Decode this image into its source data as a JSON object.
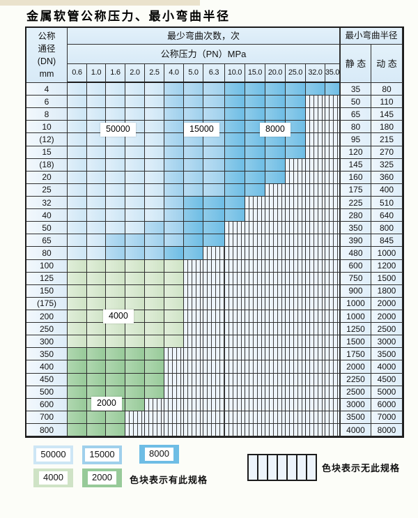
{
  "title": "金属软管公称压力、最小弯曲半径",
  "table": {
    "dn_header_lines": [
      "公称",
      "通径",
      "(DN)",
      "mm"
    ],
    "cycles_header": "最少弯曲次数，次",
    "pn_header": "公称压力（PN）MPa",
    "radius_header": "最小弯曲半径",
    "static_header": "静 态",
    "dynamic_header": "动 态",
    "pressures": [
      "0.6",
      "1.0",
      "1.6",
      "2.0",
      "2.5",
      "4.0",
      "5.0",
      "6.3",
      "10.0",
      "15.0",
      "20.0",
      "25.0",
      "32.0",
      "35.0"
    ],
    "rows": [
      {
        "dn": "4",
        "static": "35",
        "dynamic": "80",
        "band": "blue",
        "medium_from": 5,
        "dark_from": 8,
        "hatch_from": 14
      },
      {
        "dn": "6",
        "static": "50",
        "dynamic": "110",
        "band": "blue",
        "medium_from": 5,
        "dark_from": 8,
        "hatch_from": 12
      },
      {
        "dn": "8",
        "static": "65",
        "dynamic": "145",
        "band": "blue",
        "medium_from": 5,
        "dark_from": 8,
        "hatch_from": 12
      },
      {
        "dn": "10",
        "static": "80",
        "dynamic": "180",
        "band": "blue",
        "medium_from": 5,
        "dark_from": 8,
        "hatch_from": 12
      },
      {
        "dn": "(12)",
        "static": "95",
        "dynamic": "215",
        "band": "blue",
        "medium_from": 5,
        "dark_from": 8,
        "hatch_from": 12
      },
      {
        "dn": "15",
        "static": "120",
        "dynamic": "270",
        "band": "blue",
        "medium_from": 5,
        "dark_from": 8,
        "hatch_from": 12
      },
      {
        "dn": "(18)",
        "static": "145",
        "dynamic": "325",
        "band": "blue",
        "medium_from": 5,
        "dark_from": 8,
        "hatch_from": 11
      },
      {
        "dn": "20",
        "static": "160",
        "dynamic": "360",
        "band": "blue",
        "medium_from": 5,
        "dark_from": 8,
        "hatch_from": 11
      },
      {
        "dn": "25",
        "static": "175",
        "dynamic": "400",
        "band": "blue",
        "medium_from": 5,
        "dark_from": 8,
        "hatch_from": 10
      },
      {
        "dn": "32",
        "static": "225",
        "dynamic": "510",
        "band": "blue",
        "medium_from": 5,
        "dark_from": 6,
        "hatch_from": 9
      },
      {
        "dn": "40",
        "static": "280",
        "dynamic": "640",
        "band": "blue",
        "medium_from": 5,
        "dark_from": 6,
        "hatch_from": 9
      },
      {
        "dn": "50",
        "static": "350",
        "dynamic": "800",
        "band": "blue",
        "medium_from": 4,
        "dark_from": 6,
        "hatch_from": 8
      },
      {
        "dn": "65",
        "static": "390",
        "dynamic": "845",
        "band": "blue",
        "medium_from": 2,
        "dark_from": 6,
        "hatch_from": 8
      },
      {
        "dn": "80",
        "static": "480",
        "dynamic": "1000",
        "band": "blue",
        "medium_from": 2,
        "dark_from": 5,
        "hatch_from": 7
      },
      {
        "dn": "100",
        "static": "600",
        "dynamic": "1200",
        "band": "green",
        "shade": "light",
        "hatch_from": 6
      },
      {
        "dn": "125",
        "static": "750",
        "dynamic": "1500",
        "band": "green",
        "shade": "light",
        "hatch_from": 6
      },
      {
        "dn": "150",
        "static": "900",
        "dynamic": "1800",
        "band": "green",
        "shade": "light",
        "hatch_from": 6
      },
      {
        "dn": "(175)",
        "static": "1000",
        "dynamic": "2000",
        "band": "green",
        "shade": "light",
        "hatch_from": 6
      },
      {
        "dn": "200",
        "static": "1000",
        "dynamic": "2000",
        "band": "green",
        "shade": "light",
        "hatch_from": 6
      },
      {
        "dn": "250",
        "static": "1250",
        "dynamic": "2500",
        "band": "green",
        "shade": "light",
        "hatch_from": 6
      },
      {
        "dn": "300",
        "static": "1500",
        "dynamic": "3000",
        "band": "green",
        "shade": "light",
        "hatch_from": 6
      },
      {
        "dn": "350",
        "static": "1750",
        "dynamic": "3500",
        "band": "green",
        "shade": "dark",
        "hatch_from": 5
      },
      {
        "dn": "400",
        "static": "2000",
        "dynamic": "4000",
        "band": "green",
        "shade": "dark",
        "hatch_from": 5
      },
      {
        "dn": "450",
        "static": "2250",
        "dynamic": "4500",
        "band": "green",
        "shade": "dark",
        "hatch_from": 5
      },
      {
        "dn": "500",
        "static": "2500",
        "dynamic": "5000",
        "band": "green",
        "shade": "dark",
        "hatch_from": 5
      },
      {
        "dn": "600",
        "static": "3000",
        "dynamic": "6000",
        "band": "green",
        "shade": "dark",
        "hatch_from": 4
      },
      {
        "dn": "700",
        "static": "3500",
        "dynamic": "7000",
        "band": "green",
        "shade": "dark",
        "hatch_from": 3
      },
      {
        "dn": "800",
        "static": "4000",
        "dynamic": "8000",
        "band": "green",
        "shade": "dark",
        "hatch_from": 3
      }
    ]
  },
  "zone_labels": [
    {
      "text": "50000"
    },
    {
      "text": "15000"
    },
    {
      "text": "8000"
    },
    {
      "text": "4000"
    },
    {
      "text": "2000"
    }
  ],
  "legend": {
    "swatches": [
      {
        "label": "50000",
        "shade": "light-blue"
      },
      {
        "label": "15000",
        "shade": "medium-blue"
      },
      {
        "label": "8000",
        "shade": "dark-blue"
      },
      {
        "label": "4000",
        "shade": "light-green"
      },
      {
        "label": "2000",
        "shade": "dark-green"
      }
    ],
    "has_spec_text": "色块表示有此规格",
    "no_spec_text": "色块表示无此规格"
  },
  "colors": {
    "light_blue": "#cde6f5",
    "medium_blue": "#9fd0ec",
    "dark_blue": "#6ebde5",
    "light_green": "#cfe3c6",
    "dark_green": "#97ca99",
    "hatch_bg": "#edf4fb",
    "header_bg": "#d8eaf7",
    "border": "#2e2e2e",
    "cream": "#eae2cc"
  }
}
